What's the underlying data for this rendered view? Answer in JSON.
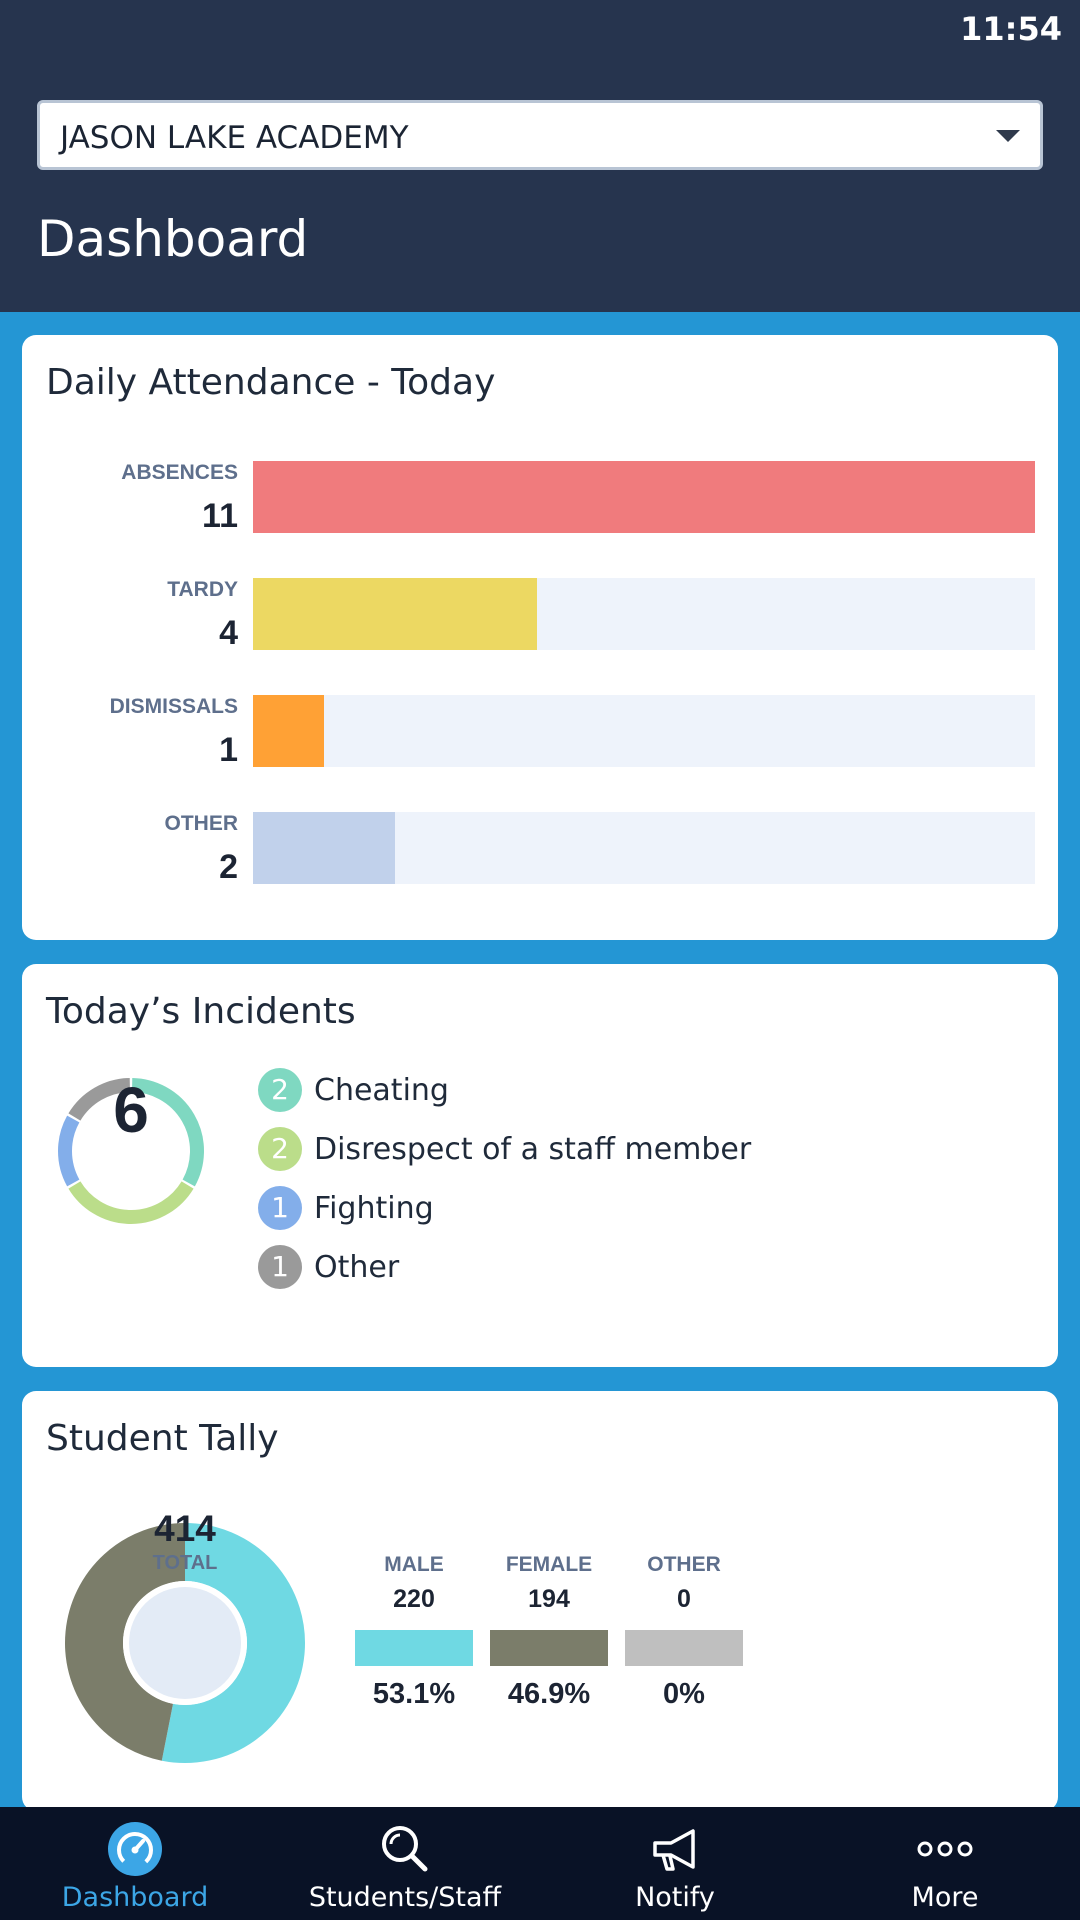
{
  "status_bar": {
    "time": "11:54"
  },
  "header": {
    "school_select": {
      "value": "JASON LAKE ACADEMY",
      "icon": "chevron-down-icon"
    },
    "title": "Dashboard"
  },
  "attendance": {
    "title": "Daily Attendance - Today",
    "rows": [
      {
        "label": "ABSENCES",
        "count": "11",
        "value": 11,
        "color": "#f07b7d"
      },
      {
        "label": "TARDY",
        "count": "4",
        "value": 4,
        "color": "#ecd862"
      },
      {
        "label": "DISMISSALS",
        "count": "1",
        "value": 1,
        "color": "#ffa135"
      },
      {
        "label": "OTHER",
        "count": "2",
        "value": 2,
        "color": "#c1d1eb"
      }
    ],
    "max_value": 11,
    "track_color": "#eef3fb"
  },
  "incidents": {
    "title": "Today’s Incidents",
    "total": "6",
    "items": [
      {
        "count": "2",
        "label": "Cheating",
        "value": 2,
        "color": "#7fd8c1"
      },
      {
        "count": "2",
        "label": "Disrespect of a staff member",
        "value": 2,
        "color": "#bbdd8a"
      },
      {
        "count": "1",
        "label": "Fighting",
        "value": 1,
        "color": "#83aeea"
      },
      {
        "count": "1",
        "label": "Other",
        "value": 1,
        "color": "#9a9a9a"
      }
    ]
  },
  "tally": {
    "title": "Student Tally",
    "total": "414",
    "total_label": "TOTAL",
    "groups": [
      {
        "label": "MALE",
        "count": "220",
        "percent": "53.1%",
        "fraction": 0.531,
        "color": "#6fd9e3"
      },
      {
        "label": "FEMALE",
        "count": "194",
        "percent": "46.9%",
        "fraction": 0.469,
        "color": "#7b7d6a"
      },
      {
        "label": "OTHER",
        "count": "0",
        "percent": "0%",
        "fraction": 0,
        "color": "#bfbfbf"
      }
    ]
  },
  "bottom_nav": {
    "active_color": "#3ca6e6",
    "items": [
      {
        "label": "Dashboard",
        "icon": "dashboard-gauge-icon",
        "active": true
      },
      {
        "label": "Students/Staff",
        "icon": "search-icon",
        "active": false
      },
      {
        "label": "Notify",
        "icon": "megaphone-icon",
        "active": false
      },
      {
        "label": "More",
        "icon": "more-dots-icon",
        "active": false
      }
    ]
  }
}
